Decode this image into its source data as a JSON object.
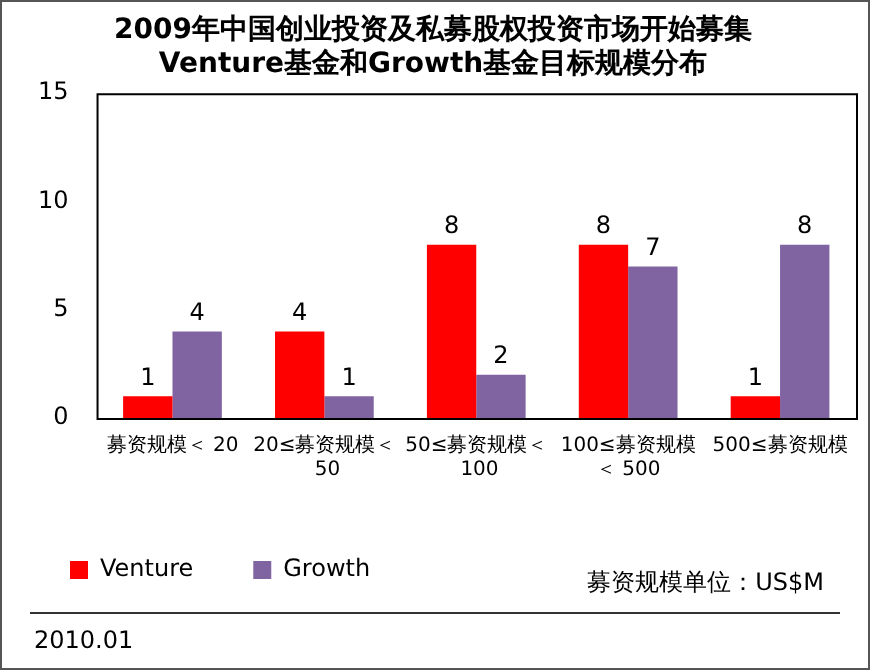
{
  "chart_data": {
    "type": "bar",
    "title": "2009年中国创业投资及私募股权投资市场开始募集\nVenture基金和Growth基金目标规模分布",
    "categories": [
      "募资规模＜ 20",
      "20≤募资规模＜ 50",
      "50≤募资规模＜ 100",
      "100≤募资规模＜ 500",
      "500≤募资规模"
    ],
    "series": [
      {
        "name": "Venture",
        "color": "#ff0000",
        "values": [
          1,
          4,
          8,
          8,
          1
        ]
      },
      {
        "name": "Growth",
        "color": "#8064a2",
        "values": [
          4,
          1,
          2,
          7,
          8
        ]
      }
    ],
    "ylim": [
      0,
      15
    ],
    "yticks": [
      0,
      5,
      10,
      15
    ],
    "grid": false,
    "legend": "bottom",
    "data_labels": true,
    "annotations": [
      "募资规模单位：US$M",
      "2010.01"
    ]
  }
}
